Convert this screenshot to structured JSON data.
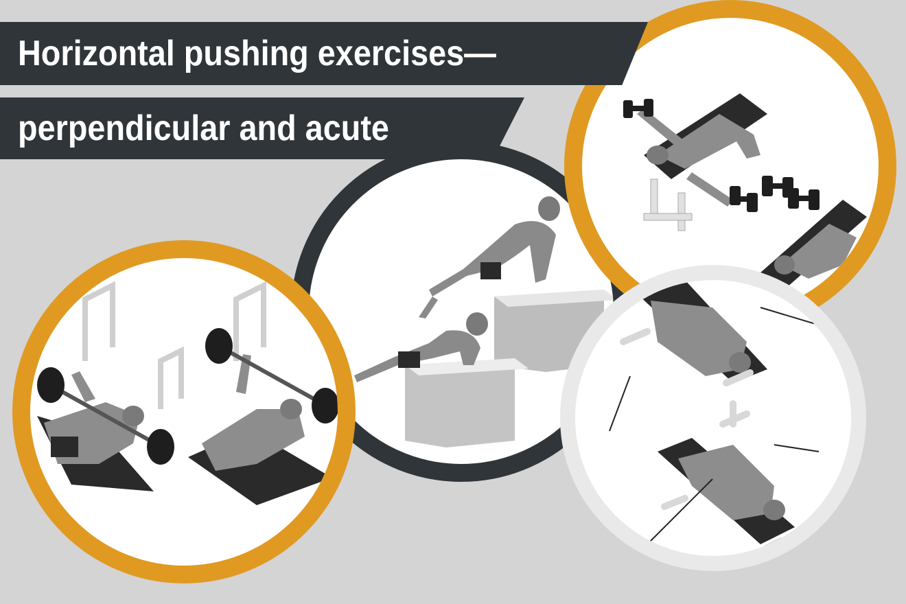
{
  "title": {
    "line1": "Horizontal pushing exercises—",
    "line2": "perpendicular and acute"
  },
  "colors": {
    "background": "#d4d4d4",
    "banner": "#2f3538",
    "accent_orange": "#e09a22",
    "ring_dark": "#2f3538",
    "ring_light": "#e9e9e9"
  },
  "illustrations": [
    {
      "icon": "barbell-bench-press-illustration"
    },
    {
      "icon": "box-push-up-illustration"
    },
    {
      "icon": "dumbbell-fly-illustration"
    },
    {
      "icon": "cable-fly-illustration"
    }
  ]
}
